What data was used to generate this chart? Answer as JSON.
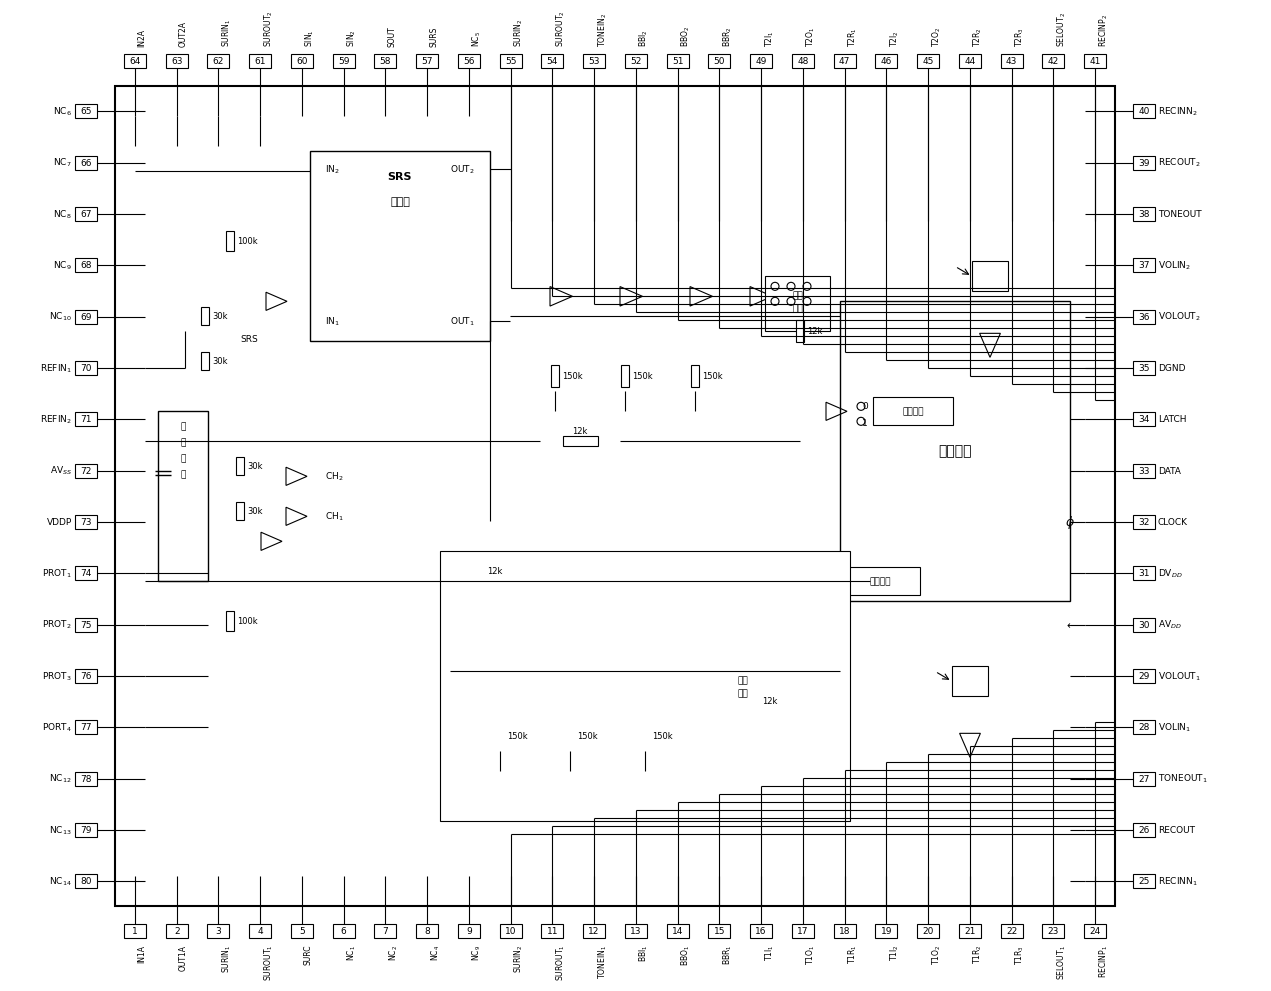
{
  "bg_color": "#ffffff",
  "line_color": "#000000",
  "top_pins": [
    [
      64,
      "IN2A"
    ],
    [
      63,
      "OUT2A"
    ],
    [
      62,
      "SURIN$_1$"
    ],
    [
      61,
      "SUROUT$_2$"
    ],
    [
      60,
      "SIN$_1$"
    ],
    [
      59,
      "SIN$_2$"
    ],
    [
      58,
      "SOUT"
    ],
    [
      57,
      "SURS"
    ],
    [
      56,
      "NC$_5$"
    ],
    [
      55,
      "SURIN$_{2}$"
    ],
    [
      54,
      "SUROUT$_2$"
    ],
    [
      53,
      "TONEIN$_2$"
    ],
    [
      52,
      "BBI$_2$"
    ],
    [
      51,
      "BBO$_2$"
    ],
    [
      50,
      "BBR$_2$"
    ],
    [
      49,
      "T2I$_1$"
    ],
    [
      48,
      "T2O$_1$"
    ],
    [
      47,
      "T2R$_1$"
    ],
    [
      46,
      "T2I$_2$"
    ],
    [
      45,
      "T2O$_2$"
    ],
    [
      44,
      "T2R$_2$"
    ],
    [
      43,
      "T2R$_3$"
    ],
    [
      42,
      "SELOUT$_2$"
    ],
    [
      41,
      "RECINP$_2$"
    ]
  ],
  "bottom_pins": [
    [
      1,
      "IN1A"
    ],
    [
      2,
      "OUT1A"
    ],
    [
      3,
      "SURIN$_1$"
    ],
    [
      4,
      "SUROUT$_1$"
    ],
    [
      5,
      "SURC"
    ],
    [
      6,
      "NC$_1$"
    ],
    [
      7,
      "NC$_2$"
    ],
    [
      8,
      "NC$_4$"
    ],
    [
      9,
      "NC$_9$"
    ],
    [
      10,
      "SURIN$_2$"
    ],
    [
      11,
      "SUROUT$_1$"
    ],
    [
      12,
      "TONEIN$_1$"
    ],
    [
      13,
      "BBI$_1$"
    ],
    [
      14,
      "BBO$_1$"
    ],
    [
      15,
      "BBR$_1$"
    ],
    [
      16,
      "T1I$_1$"
    ],
    [
      17,
      "T1O$_1$"
    ],
    [
      18,
      "T1R$_1$"
    ],
    [
      19,
      "T1I$_2$"
    ],
    [
      20,
      "T1O$_2$"
    ],
    [
      21,
      "T1R$_2$"
    ],
    [
      22,
      "T1R$_3$"
    ],
    [
      23,
      "SELOUT$_1$"
    ],
    [
      24,
      "RECINP$_1$"
    ]
  ],
  "left_pins": [
    [
      65,
      "NC$_6$"
    ],
    [
      66,
      "NC$_7$"
    ],
    [
      67,
      "NC$_8$"
    ],
    [
      68,
      "NC$_9$"
    ],
    [
      69,
      "NC$_{10}$"
    ],
    [
      70,
      "REFIN$_1$"
    ],
    [
      71,
      "REFIN$_2$"
    ],
    [
      72,
      "AV$_{SS}$"
    ],
    [
      73,
      "VDDP"
    ],
    [
      74,
      "PROT$_1$"
    ],
    [
      75,
      "PROT$_2$"
    ],
    [
      76,
      "PROT$_3$"
    ],
    [
      77,
      "PORT$_4$"
    ],
    [
      78,
      "NC$_{12}$"
    ],
    [
      79,
      "NC$_{13}$"
    ],
    [
      80,
      "NC$_{14}$"
    ]
  ],
  "right_pins": [
    [
      40,
      "RECINN$_2$"
    ],
    [
      39,
      "RECOUT$_2$"
    ],
    [
      38,
      "TONEOUT"
    ],
    [
      37,
      "VOLIN$_2$"
    ],
    [
      36,
      "VOLOUT$_2$"
    ],
    [
      35,
      "DGND"
    ],
    [
      34,
      "LATCH"
    ],
    [
      33,
      "DATA"
    ],
    [
      32,
      "CLOCK"
    ],
    [
      31,
      "DV$_{DD}$"
    ],
    [
      30,
      "AV$_{DD}$"
    ],
    [
      29,
      "VOLOUT$_1$"
    ],
    [
      28,
      "VOLIN$_1$"
    ],
    [
      27,
      "TONEOUT$_1$"
    ],
    [
      26,
      "RECOUT"
    ],
    [
      25,
      "RECINN$_1$"
    ]
  ]
}
